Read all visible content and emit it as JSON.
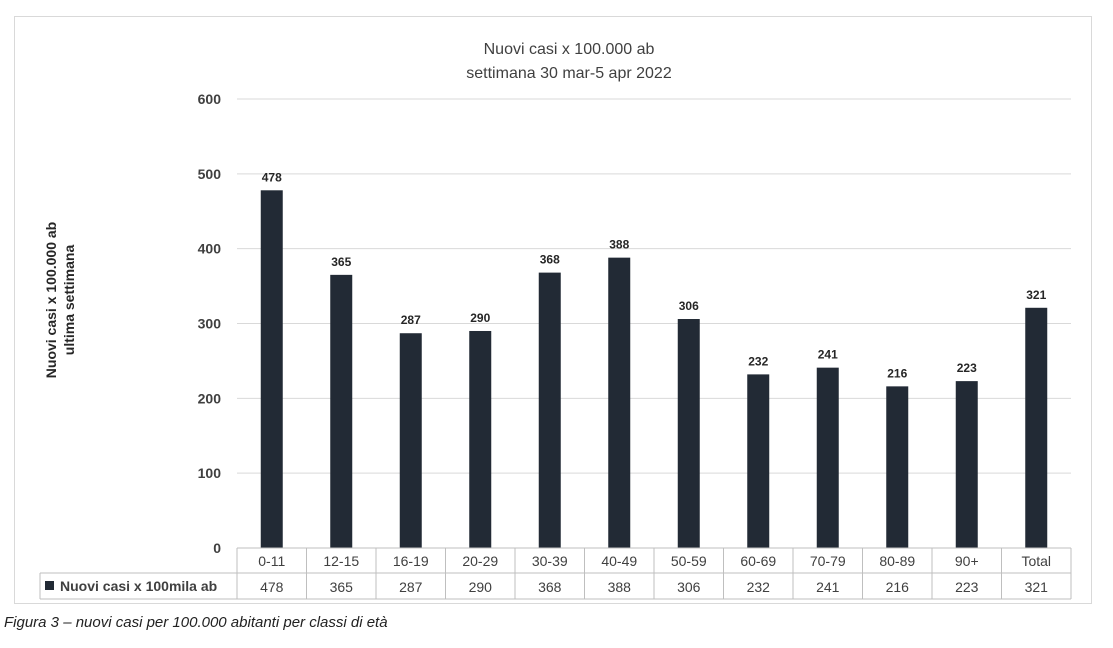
{
  "chart_data": {
    "type": "bar",
    "title": "Nuovi casi x 100.000 ab",
    "subtitle": "settimana 30 mar-5 apr 2022",
    "ylabel_line1": "Nuovi casi x 100.000 ab",
    "ylabel_line2": "ultima settimana",
    "xlabel": "",
    "ylim": [
      0,
      600
    ],
    "yticks": [
      0,
      100,
      200,
      300,
      400,
      500,
      600
    ],
    "grid": true,
    "categories": [
      "0-11",
      "12-15",
      "16-19",
      "20-29",
      "30-39",
      "40-49",
      "50-59",
      "60-69",
      "70-79",
      "80-89",
      "90+",
      "Total"
    ],
    "series": [
      {
        "name": "Nuovi casi x 100mila ab",
        "color": "#222a35",
        "values": [
          478,
          365,
          287,
          290,
          368,
          388,
          306,
          232,
          241,
          216,
          223,
          321
        ]
      }
    ],
    "data_table": true
  },
  "caption": "Figura 3 – nuovi casi per 100.000 abitanti per classi di età"
}
